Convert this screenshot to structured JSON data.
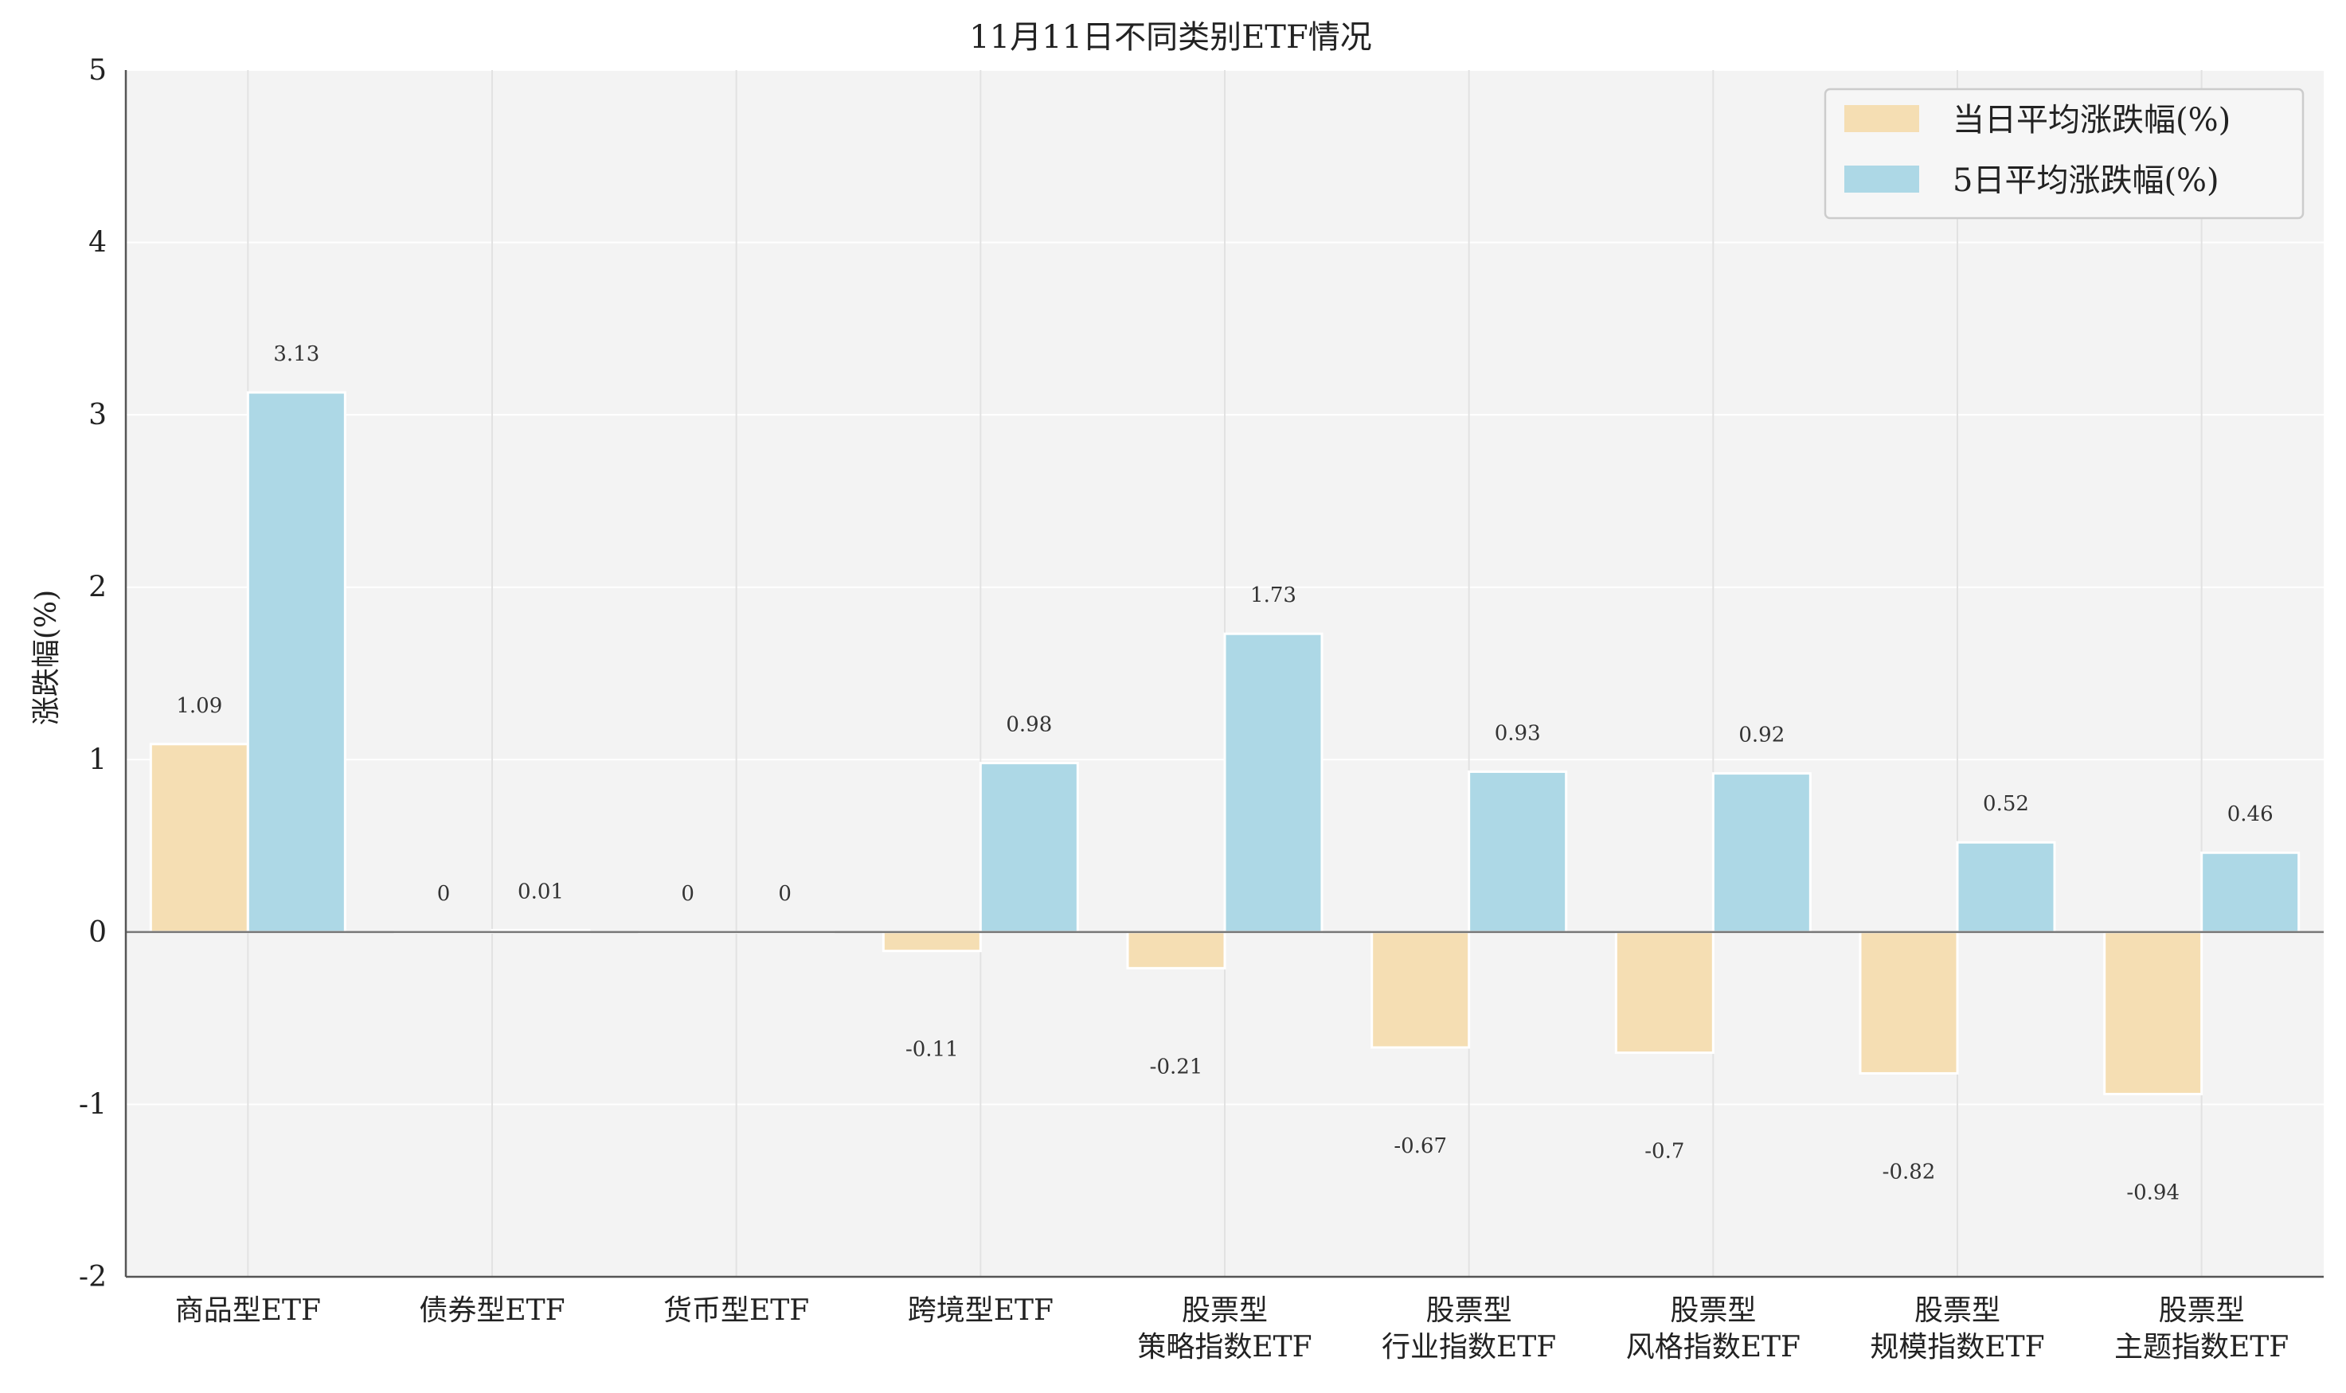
{
  "chart_data": {
    "type": "bar",
    "title": "11月11日不同类别ETF情况",
    "xlabel": "",
    "ylabel": "涨跌幅(%)",
    "ylim": [
      -2,
      5
    ],
    "yticks": [
      -2,
      -1,
      0,
      1,
      2,
      3,
      4,
      5
    ],
    "grid": true,
    "legend_position": "top-right",
    "categories": [
      [
        "商品型ETF"
      ],
      [
        "债券型ETF"
      ],
      [
        "货币型ETF"
      ],
      [
        "跨境型ETF"
      ],
      [
        "股票型",
        "策略指数ETF"
      ],
      [
        "股票型",
        "行业指数ETF"
      ],
      [
        "股票型",
        "风格指数ETF"
      ],
      [
        "股票型",
        "规模指数ETF"
      ],
      [
        "股票型",
        "主题指数ETF"
      ]
    ],
    "series": [
      {
        "name": "当日平均涨跌幅(%)",
        "color": "#f5deb3",
        "values": [
          1.09,
          0.0,
          0.0,
          -0.11,
          -0.21,
          -0.67,
          -0.7,
          -0.82,
          -0.94
        ]
      },
      {
        "name": "5日平均涨跌幅(%)",
        "color": "#add8e6",
        "values": [
          3.13,
          0.01,
          0.0,
          0.98,
          1.73,
          0.93,
          0.92,
          0.52,
          0.46
        ]
      }
    ]
  }
}
